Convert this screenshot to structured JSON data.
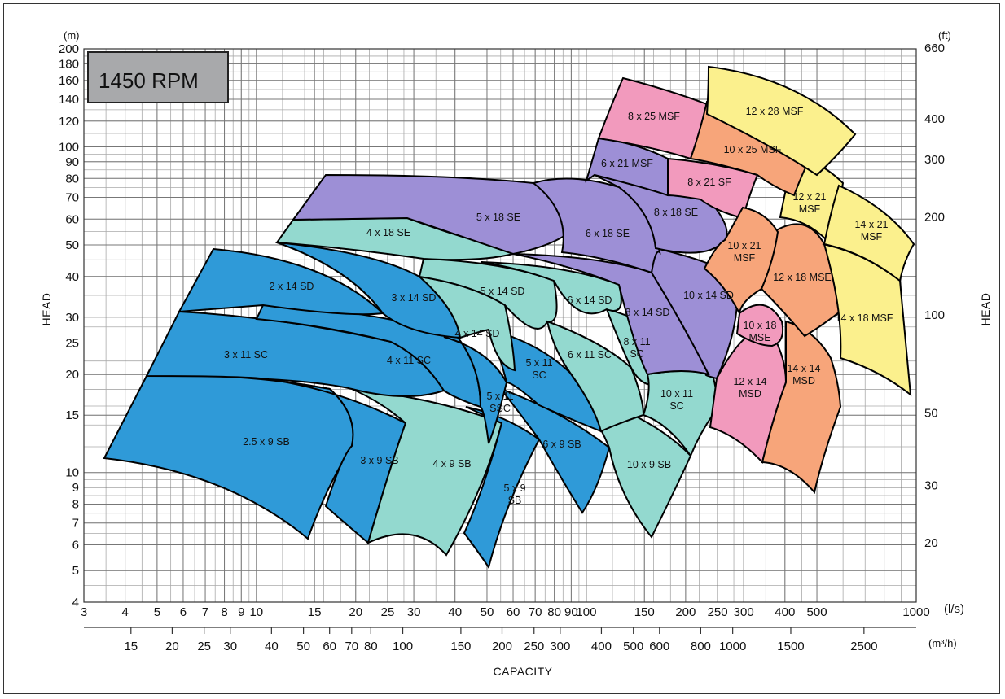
{
  "chart_data": {
    "type": "area",
    "title": "1450 RPM",
    "xlabel": "CAPACITY",
    "ylabel_left": "HEAD",
    "ylabel_right": "HEAD",
    "x_unit_primary": "(l/s)",
    "x_unit_secondary": "(m³/h)",
    "y_unit_left": "(m)",
    "y_unit_right": "(ft)",
    "x_scale": "log",
    "y_scale": "log",
    "xlim": [
      3,
      1000
    ],
    "ylim": [
      4,
      200
    ],
    "x_ticks_ls": [
      "3",
      "4",
      "5",
      "6",
      "7",
      "8",
      "9",
      "10",
      "15",
      "20",
      "25",
      "30",
      "40",
      "50",
      "60",
      "70",
      "80",
      "90",
      "100",
      "150",
      "200",
      "250",
      "300",
      "400",
      "500",
      "1000"
    ],
    "x_ticks_m3h": [
      "15",
      "20",
      "25",
      "30",
      "40",
      "50",
      "60",
      "70",
      "80",
      "100",
      "150",
      "200",
      "250",
      "300",
      "400",
      "500",
      "600",
      "800",
      "1000",
      "1500",
      "2500"
    ],
    "y_ticks_m": [
      "4",
      "5",
      "6",
      "7",
      "8",
      "9",
      "10",
      "15",
      "20",
      "25",
      "30",
      "40",
      "50",
      "60",
      "70",
      "80",
      "90",
      "100",
      "120",
      "140",
      "160",
      "180",
      "200"
    ],
    "y_ticks_ft": [
      "20",
      "30",
      "50",
      "100",
      "200",
      "300",
      "400",
      "660"
    ],
    "grid": true,
    "colors": {
      "blue": "#2f9ad8",
      "teal": "#93d9cf",
      "purple": "#9d8fd6",
      "pink": "#f29abd",
      "orange": "#f7a57a",
      "yellow": "#fbf08d",
      "badge": "#a8a9ab"
    },
    "regions": [
      {
        "label": "2.5 x 9 SB",
        "color": "blue"
      },
      {
        "label": "3 x 9 SB",
        "color": "blue"
      },
      {
        "label": "4 x 9 SB",
        "color": "teal"
      },
      {
        "label": "5 x 9 SB",
        "color": "blue"
      },
      {
        "label": "6 x 9 SB",
        "color": "blue"
      },
      {
        "label": "10 x 9 SB",
        "color": "teal"
      },
      {
        "label": "3 x 11 SC",
        "color": "blue"
      },
      {
        "label": "4 x 11 SC",
        "color": "blue"
      },
      {
        "label": "5 x 11 SSC",
        "color": "blue"
      },
      {
        "label": "5 x 11 SC",
        "color": "blue"
      },
      {
        "label": "6 x 11 SC",
        "color": "teal"
      },
      {
        "label": "8 x 11 SC",
        "color": "teal"
      },
      {
        "label": "10 x 11 SC",
        "color": "teal"
      },
      {
        "label": "2 x 14 SD",
        "color": "blue"
      },
      {
        "label": "3 x 14 SD",
        "color": "blue"
      },
      {
        "label": "4 x 14 SD",
        "color": "teal"
      },
      {
        "label": "5 x 14 SD",
        "color": "teal"
      },
      {
        "label": "6 x 14 SD",
        "color": "teal"
      },
      {
        "label": "8 x 14 SD",
        "color": "purple"
      },
      {
        "label": "10 x 14 SD",
        "color": "purple"
      },
      {
        "label": "12 x 14 MSD",
        "color": "pink"
      },
      {
        "label": "14 x 14 MSD",
        "color": "orange"
      },
      {
        "label": "4 x 18 SE",
        "color": "teal"
      },
      {
        "label": "5 x 18 SE",
        "color": "purple"
      },
      {
        "label": "6 x 18 SE",
        "color": "purple"
      },
      {
        "label": "8 x 18 SE",
        "color": "purple"
      },
      {
        "label": "10 x 18 MSE",
        "color": "pink"
      },
      {
        "label": "12 x 18 MSE",
        "color": "orange"
      },
      {
        "label": "14 x 18 MSF",
        "color": "yellow"
      },
      {
        "label": "6 x 21 MSF",
        "color": "purple"
      },
      {
        "label": "8 x 21 SF",
        "color": "pink"
      },
      {
        "label": "10 x 21 MSF",
        "color": "orange"
      },
      {
        "label": "12 x 21 MSF",
        "color": "yellow"
      },
      {
        "label": "14 x 21 MSF",
        "color": "yellow"
      },
      {
        "label": "8 x 25 MSF",
        "color": "pink"
      },
      {
        "label": "10 x 25 MSF",
        "color": "orange"
      },
      {
        "label": "12 x 28 MSF",
        "color": "yellow"
      }
    ]
  }
}
